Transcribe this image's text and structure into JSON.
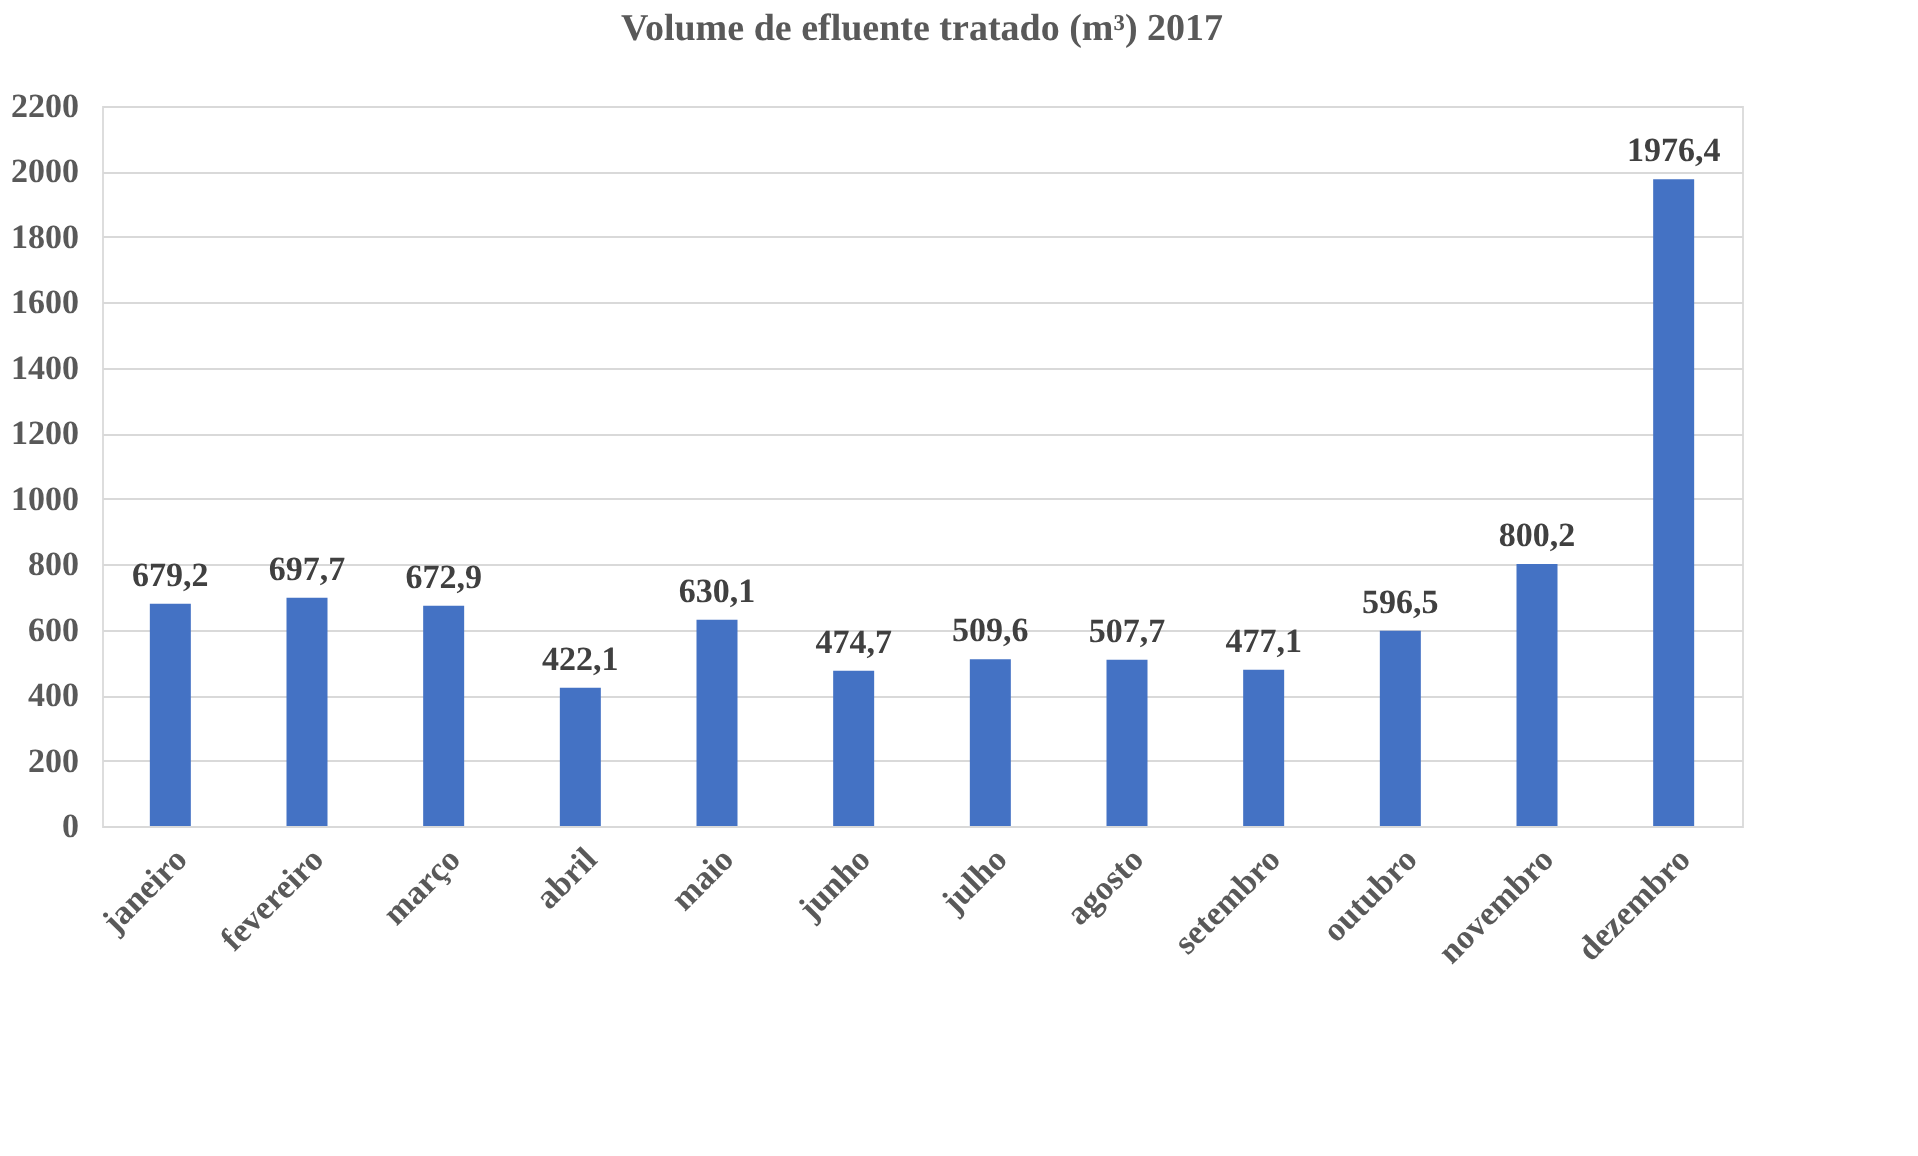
{
  "chart_data": {
    "type": "bar",
    "title": "Volume de efluente tratado (m³) 2017",
    "categories": [
      "janeiro",
      "fevereiro",
      "março",
      "abril",
      "maio",
      "junho",
      "julho",
      "agosto",
      "setembro",
      "outubro",
      "novembro",
      "dezembro"
    ],
    "values": [
      679.2,
      697.7,
      672.9,
      422.1,
      630.1,
      474.7,
      509.6,
      507.7,
      477.1,
      596.5,
      800.2,
      1976.4
    ],
    "value_labels": [
      "679,2",
      "697,7",
      "672,9",
      "422,1",
      "630,1",
      "474,7",
      "509,6",
      "507,7",
      "477,1",
      "596,5",
      "800,2",
      "1976,4"
    ],
    "color": "#4472c4",
    "ylim": [
      0,
      2200
    ],
    "yticks": [
      0,
      200,
      400,
      600,
      800,
      1000,
      1200,
      1400,
      1600,
      1800,
      2000,
      2200
    ],
    "grid": "y"
  }
}
